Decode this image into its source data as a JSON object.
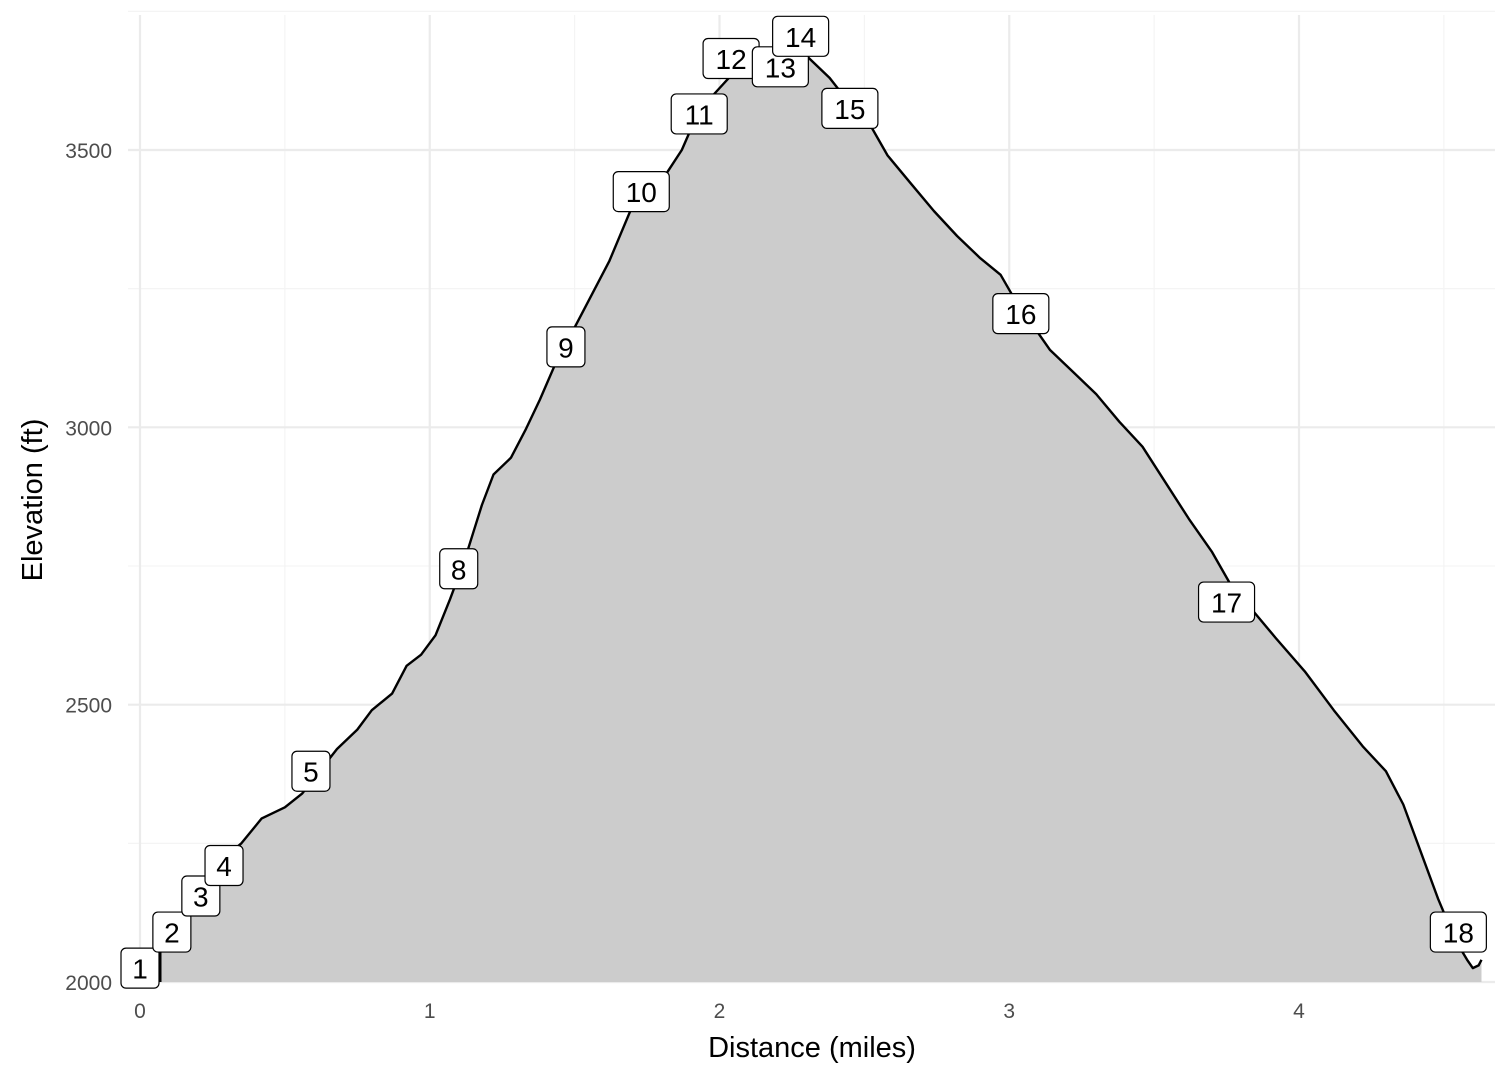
{
  "chart_data": {
    "type": "area",
    "title": "",
    "xlabel": "Distance (miles)",
    "ylabel": "Elevation (ft)",
    "xlim": [
      0,
      4.65
    ],
    "ylim": [
      2000,
      3750
    ],
    "x_ticks": [
      0,
      1,
      2,
      3,
      4
    ],
    "y_ticks": [
      2000,
      2500,
      3000,
      3500
    ],
    "grid": true,
    "fill_color": "#cccccc",
    "line_color": "#000000",
    "profile": [
      [
        0.07,
        2000
      ],
      [
        0.07,
        2060
      ],
      [
        0.12,
        2085
      ],
      [
        0.18,
        2125
      ],
      [
        0.24,
        2180
      ],
      [
        0.3,
        2228
      ],
      [
        0.35,
        2250
      ],
      [
        0.42,
        2295
      ],
      [
        0.5,
        2315
      ],
      [
        0.56,
        2340
      ],
      [
        0.62,
        2380
      ],
      [
        0.68,
        2420
      ],
      [
        0.75,
        2455
      ],
      [
        0.8,
        2490
      ],
      [
        0.87,
        2520
      ],
      [
        0.92,
        2570
      ],
      [
        0.97,
        2590
      ],
      [
        1.02,
        2625
      ],
      [
        1.07,
        2690
      ],
      [
        1.12,
        2760
      ],
      [
        1.15,
        2810
      ],
      [
        1.18,
        2860
      ],
      [
        1.22,
        2915
      ],
      [
        1.28,
        2945
      ],
      [
        1.33,
        2995
      ],
      [
        1.38,
        3050
      ],
      [
        1.43,
        3110
      ],
      [
        1.47,
        3150
      ],
      [
        1.52,
        3200
      ],
      [
        1.57,
        3250
      ],
      [
        1.62,
        3300
      ],
      [
        1.66,
        3350
      ],
      [
        1.7,
        3400
      ],
      [
        1.76,
        3435
      ],
      [
        1.82,
        3460
      ],
      [
        1.87,
        3500
      ],
      [
        1.92,
        3560
      ],
      [
        1.98,
        3600
      ],
      [
        2.05,
        3640
      ],
      [
        2.12,
        3665
      ],
      [
        2.2,
        3680
      ],
      [
        2.26,
        3690
      ],
      [
        2.32,
        3660
      ],
      [
        2.38,
        3630
      ],
      [
        2.44,
        3590
      ],
      [
        2.52,
        3545
      ],
      [
        2.58,
        3490
      ],
      [
        2.66,
        3440
      ],
      [
        2.74,
        3390
      ],
      [
        2.82,
        3345
      ],
      [
        2.9,
        3305
      ],
      [
        2.97,
        3275
      ],
      [
        3.02,
        3230
      ],
      [
        3.08,
        3185
      ],
      [
        3.14,
        3140
      ],
      [
        3.22,
        3100
      ],
      [
        3.3,
        3060
      ],
      [
        3.38,
        3010
      ],
      [
        3.46,
        2965
      ],
      [
        3.54,
        2900
      ],
      [
        3.62,
        2835
      ],
      [
        3.7,
        2775
      ],
      [
        3.76,
        2720
      ],
      [
        3.84,
        2670
      ],
      [
        3.92,
        2620
      ],
      [
        4.02,
        2560
      ],
      [
        4.12,
        2490
      ],
      [
        4.22,
        2425
      ],
      [
        4.3,
        2380
      ],
      [
        4.36,
        2320
      ],
      [
        4.42,
        2235
      ],
      [
        4.48,
        2150
      ],
      [
        4.54,
        2075
      ],
      [
        4.58,
        2040
      ],
      [
        4.6,
        2025
      ],
      [
        4.62,
        2030
      ],
      [
        4.63,
        2040
      ]
    ],
    "markers": [
      {
        "label": "1",
        "x": 0.0,
        "y": 2025
      },
      {
        "label": "2",
        "x": 0.11,
        "y": 2090
      },
      {
        "label": "3",
        "x": 0.21,
        "y": 2155
      },
      {
        "label": "4",
        "x": 0.29,
        "y": 2210
      },
      {
        "label": "5",
        "x": 0.59,
        "y": 2380
      },
      {
        "label": "8",
        "x": 1.1,
        "y": 2745
      },
      {
        "label": "9",
        "x": 1.47,
        "y": 3145
      },
      {
        "label": "10",
        "x": 1.73,
        "y": 3425
      },
      {
        "label": "11",
        "x": 1.93,
        "y": 3565
      },
      {
        "label": "12",
        "x": 2.04,
        "y": 3665
      },
      {
        "label": "13",
        "x": 2.21,
        "y": 3650
      },
      {
        "label": "14",
        "x": 2.28,
        "y": 3705
      },
      {
        "label": "15",
        "x": 2.45,
        "y": 3575
      },
      {
        "label": "16",
        "x": 3.04,
        "y": 3205
      },
      {
        "label": "17",
        "x": 3.75,
        "y": 2685
      },
      {
        "label": "18",
        "x": 4.55,
        "y": 2090
      }
    ]
  }
}
